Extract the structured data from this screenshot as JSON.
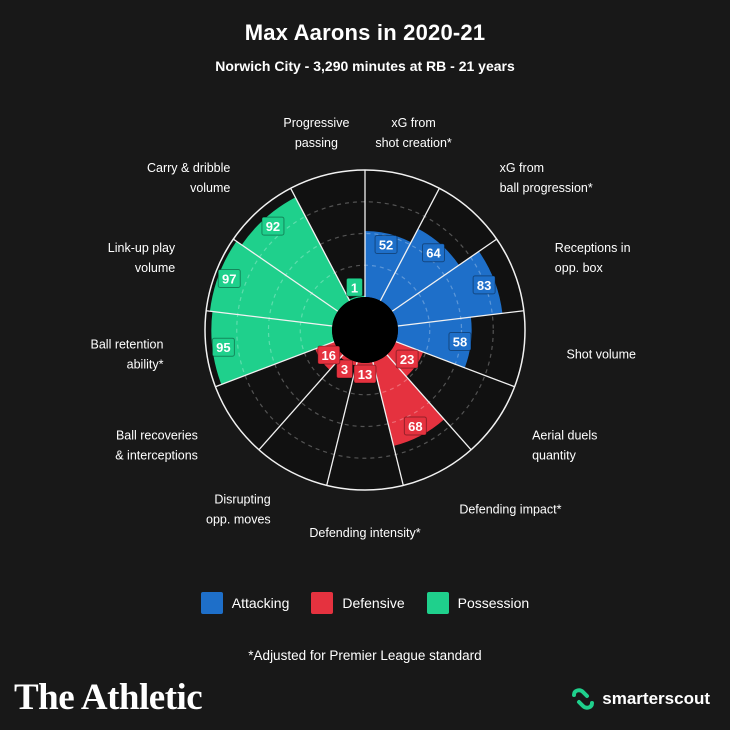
{
  "header": {
    "title": "Max Aarons in 2020-21",
    "subtitle": "Norwich City - 3,290 minutes at RB - 21 years"
  },
  "legend": [
    {
      "label": "Attacking",
      "color": "#1E6FC9"
    },
    {
      "label": "Defensive",
      "color": "#E5323F"
    },
    {
      "label": "Possession",
      "color": "#1FD08C"
    }
  ],
  "footnote": "*Adjusted for Premier League standard",
  "brand": "The Athletic",
  "partner": "smarterscout",
  "chart_data": {
    "type": "radial-bar",
    "range": [
      0,
      100
    ],
    "categories": [
      {
        "label": [
          "xG from",
          "shot creation*"
        ],
        "value": 52,
        "group": "Attacking"
      },
      {
        "label": [
          "xG from",
          "ball progression*"
        ],
        "value": 64,
        "group": "Attacking"
      },
      {
        "label": [
          "Receptions in",
          "opp. box"
        ],
        "value": 83,
        "group": "Attacking"
      },
      {
        "label": [
          "Shot volume"
        ],
        "value": 58,
        "group": "Attacking"
      },
      {
        "label": [
          "Aerial duels",
          "quantity"
        ],
        "value": 23,
        "group": "Defensive"
      },
      {
        "label": [
          "Defending impact*"
        ],
        "value": 68,
        "group": "Defensive"
      },
      {
        "label": [
          "Defending intensity*"
        ],
        "value": 13,
        "group": "Defensive"
      },
      {
        "label": [
          "Disrupting",
          "opp. moves"
        ],
        "value": 3,
        "group": "Defensive"
      },
      {
        "label": [
          "Ball recoveries",
          "& interceptions"
        ],
        "value": 16,
        "group": "Defensive"
      },
      {
        "label": [
          "Ball retention",
          "ability*"
        ],
        "value": 95,
        "group": "Possession"
      },
      {
        "label": [
          "Link-up play",
          "volume"
        ],
        "value": 97,
        "group": "Possession"
      },
      {
        "label": [
          "Carry & dribble",
          "volume"
        ],
        "value": 92,
        "group": "Possession"
      },
      {
        "label": [
          "Progressive",
          "passing"
        ],
        "value": 1,
        "group": "Possession"
      }
    ],
    "colors": {
      "Attacking": "#1E6FC9",
      "Defensive": "#E5323F",
      "Possession": "#1FD08C"
    }
  }
}
